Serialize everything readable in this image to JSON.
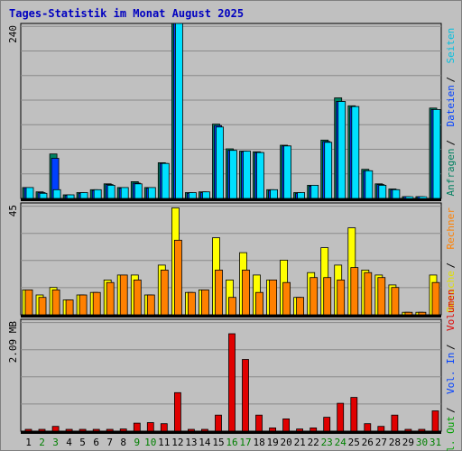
{
  "chart_data": [
    {
      "type": "bar",
      "title": "Tages-Statistik im Monat August 2025",
      "panel": "top",
      "y_max_label": "240",
      "ylim": [
        0,
        240
      ],
      "categories": [
        "1",
        "2",
        "3",
        "4",
        "5",
        "6",
        "7",
        "8",
        "9",
        "10",
        "11",
        "12",
        "13",
        "14",
        "15",
        "16",
        "17",
        "18",
        "19",
        "20",
        "21",
        "22",
        "23",
        "24",
        "25",
        "26",
        "27",
        "28",
        "29",
        "30",
        "31"
      ],
      "series": [
        {
          "name": "Anfragen",
          "color": "#008060",
          "values": [
            15,
            9,
            61,
            5,
            8,
            12,
            20,
            15,
            23,
            15,
            49,
            240,
            8,
            9,
            102,
            68,
            65,
            64,
            12,
            73,
            8,
            18,
            80,
            138,
            127,
            40,
            20,
            13,
            1,
            1,
            124
          ]
        },
        {
          "name": "Dateien",
          "color": "#0040ff",
          "values": [
            15,
            8,
            55,
            4,
            7,
            11,
            19,
            14,
            21,
            14,
            48,
            240,
            7,
            8,
            100,
            66,
            64,
            63,
            11,
            72,
            7,
            17,
            78,
            133,
            125,
            38,
            19,
            12,
            0,
            0,
            122
          ]
        },
        {
          "name": "Seiten",
          "color": "#00e0ff",
          "values": [
            15,
            7,
            12,
            5,
            8,
            12,
            18,
            15,
            20,
            15,
            48,
            240,
            8,
            9,
            98,
            66,
            65,
            63,
            12,
            72,
            8,
            18,
            77,
            133,
            126,
            38,
            18,
            12,
            0,
            0,
            122
          ]
        }
      ]
    },
    {
      "type": "bar",
      "panel": "middle",
      "y_max_label": "45",
      "ylim": [
        0,
        45
      ],
      "series": [
        {
          "name": "Besuche",
          "color": "#ffff00",
          "values": [
            10,
            8,
            11,
            6,
            8,
            9,
            14,
            16,
            16,
            8,
            20,
            43,
            9,
            10,
            31,
            14,
            25,
            16,
            14,
            22,
            7,
            17,
            27,
            20,
            35,
            18,
            16,
            12,
            1,
            1,
            16
          ]
        },
        {
          "name": "Rechner",
          "color": "#ff8000",
          "values": [
            10,
            7,
            10,
            6,
            8,
            9,
            13,
            16,
            14,
            8,
            18,
            30,
            9,
            10,
            18,
            7,
            18,
            9,
            14,
            13,
            7,
            15,
            15,
            14,
            19,
            17,
            15,
            11,
            1,
            1,
            13
          ]
        }
      ]
    },
    {
      "type": "bar",
      "panel": "bottom",
      "y_max_label": "2.09 MB",
      "ylim": [
        0,
        2.09
      ],
      "series": [
        {
          "name": "Volumen",
          "color": "#e00000",
          "values": [
            0.02,
            0.02,
            0.09,
            0.02,
            0.02,
            0.02,
            0.02,
            0.04,
            0.15,
            0.16,
            0.14,
            0.72,
            0.03,
            0.03,
            0.3,
            1.82,
            1.34,
            0.3,
            0.06,
            0.23,
            0.04,
            0.06,
            0.26,
            0.52,
            0.63,
            0.14,
            0.09,
            0.3,
            0.03,
            0.03,
            0.38
          ]
        }
      ]
    }
  ],
  "right_labels": {
    "top": [
      {
        "text": "Anfragen",
        "color": "#008060"
      },
      {
        "text": "Dateien",
        "color": "#0040ff"
      },
      {
        "text": "Seiten",
        "color": "#00c0e0"
      }
    ],
    "middle": [
      {
        "text": "Besuche",
        "color": "#e0e000"
      },
      {
        "text": "Rechner",
        "color": "#ff8000"
      }
    ],
    "bottom": [
      {
        "text": "Vol. Out",
        "color": "#00a000"
      },
      {
        "text": "Vol. In",
        "color": "#0040ff"
      },
      {
        "text": "Volumen",
        "color": "#e00000"
      }
    ]
  },
  "weekend_days": [
    "2",
    "3",
    "9",
    "10",
    "16",
    "17",
    "23",
    "24",
    "30",
    "31"
  ],
  "colors": {
    "weekend_label": "#008000",
    "weekday_label": "#000000",
    "title": "#0000c0",
    "separator": "#000000",
    "background": "#c0c0c0",
    "grid": "#909090"
  }
}
